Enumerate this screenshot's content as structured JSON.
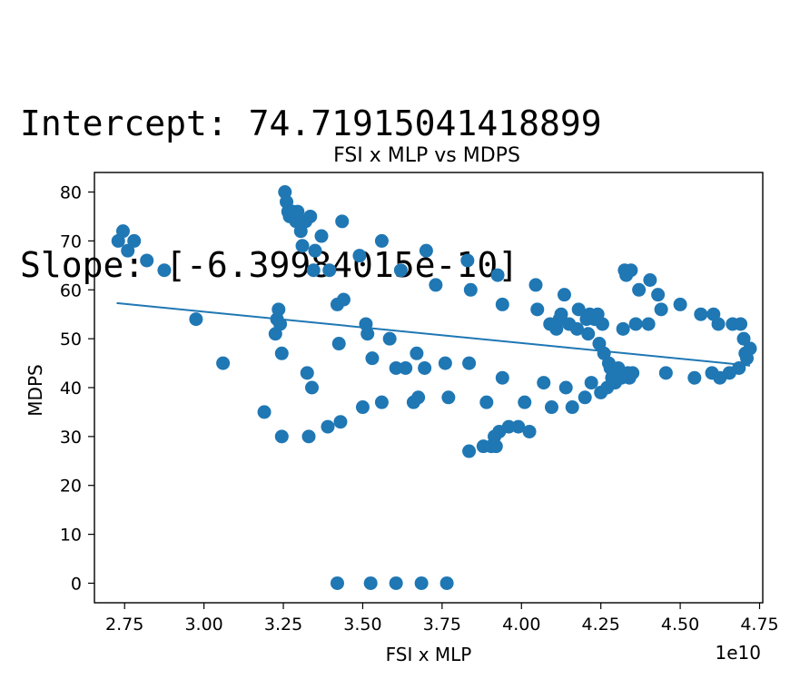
{
  "output": {
    "intercept_line": "Intercept: 74.71915041418899",
    "slope_line": "Slope: [-6.39984015e-10]"
  },
  "chart_data": {
    "type": "scatter",
    "title": "FSI x MLP vs MDPS",
    "xlabel": "FSI x MLP",
    "ylabel": "MDPS",
    "x_offset_label": "1e10",
    "x_units": "1e10",
    "xlim": [
      2.655,
      4.76
    ],
    "ylim": [
      -4,
      84
    ],
    "x_ticks": [
      2.75,
      3.0,
      3.25,
      3.5,
      3.75,
      4.0,
      4.25,
      4.5,
      4.75
    ],
    "x_tick_labels": [
      "2.75",
      "3.00",
      "3.25",
      "3.50",
      "3.75",
      "4.00",
      "4.25",
      "4.50",
      "4.75"
    ],
    "y_ticks": [
      0,
      10,
      20,
      30,
      40,
      50,
      60,
      70,
      80
    ],
    "y_tick_labels": [
      "0",
      "10",
      "20",
      "30",
      "40",
      "50",
      "60",
      "70",
      "80"
    ],
    "grid": false,
    "point_color": "#1f77b4",
    "line_color": "#1f77b4",
    "series": [
      {
        "type": "scatter",
        "points": [
          [
            2.73,
            70
          ],
          [
            2.745,
            72
          ],
          [
            2.76,
            68
          ],
          [
            2.78,
            70
          ],
          [
            2.82,
            66
          ],
          [
            2.875,
            64
          ],
          [
            2.975,
            54
          ],
          [
            3.06,
            45
          ],
          [
            3.19,
            35
          ],
          [
            3.225,
            51
          ],
          [
            3.23,
            54
          ],
          [
            3.235,
            56
          ],
          [
            3.24,
            53
          ],
          [
            3.245,
            47
          ],
          [
            3.245,
            30
          ],
          [
            3.255,
            80
          ],
          [
            3.26,
            78
          ],
          [
            3.265,
            76
          ],
          [
            3.27,
            75
          ],
          [
            3.28,
            76
          ],
          [
            3.29,
            74
          ],
          [
            3.295,
            76
          ],
          [
            3.305,
            72
          ],
          [
            3.31,
            69
          ],
          [
            3.32,
            74
          ],
          [
            3.325,
            43
          ],
          [
            3.33,
            30
          ],
          [
            3.335,
            75
          ],
          [
            3.34,
            40
          ],
          [
            3.345,
            64
          ],
          [
            3.35,
            68
          ],
          [
            3.37,
            71
          ],
          [
            3.39,
            32
          ],
          [
            3.395,
            64
          ],
          [
            3.42,
            57
          ],
          [
            3.425,
            49
          ],
          [
            3.43,
            33
          ],
          [
            3.435,
            74
          ],
          [
            3.44,
            58
          ],
          [
            3.49,
            67
          ],
          [
            3.5,
            36
          ],
          [
            3.51,
            53
          ],
          [
            3.515,
            51
          ],
          [
            3.53,
            46
          ],
          [
            3.56,
            70
          ],
          [
            3.56,
            37
          ],
          [
            3.585,
            50
          ],
          [
            3.605,
            44
          ],
          [
            3.62,
            64
          ],
          [
            3.635,
            44
          ],
          [
            3.66,
            37
          ],
          [
            3.67,
            47
          ],
          [
            3.675,
            38
          ],
          [
            3.695,
            44
          ],
          [
            3.7,
            68
          ],
          [
            3.73,
            61
          ],
          [
            3.76,
            45
          ],
          [
            3.77,
            38
          ],
          [
            3.84,
            60
          ],
          [
            3.83,
            66
          ],
          [
            3.835,
            45
          ],
          [
            3.835,
            27
          ],
          [
            3.88,
            28
          ],
          [
            3.89,
            37
          ],
          [
            3.905,
            28
          ],
          [
            3.915,
            30
          ],
          [
            3.92,
            28
          ],
          [
            3.925,
            63
          ],
          [
            3.93,
            31
          ],
          [
            3.94,
            57
          ],
          [
            3.94,
            42
          ],
          [
            3.96,
            32
          ],
          [
            3.99,
            32
          ],
          [
            4.01,
            37
          ],
          [
            4.025,
            31
          ],
          [
            4.045,
            61
          ],
          [
            4.05,
            56
          ],
          [
            4.07,
            41
          ],
          [
            4.09,
            53
          ],
          [
            4.095,
            36
          ],
          [
            4.11,
            52
          ],
          [
            4.12,
            54
          ],
          [
            4.125,
            55
          ],
          [
            4.135,
            59
          ],
          [
            4.14,
            40
          ],
          [
            4.15,
            53
          ],
          [
            4.16,
            36
          ],
          [
            4.175,
            52
          ],
          [
            4.18,
            56
          ],
          [
            4.2,
            38
          ],
          [
            4.205,
            54
          ],
          [
            4.21,
            51
          ],
          [
            4.215,
            55
          ],
          [
            4.22,
            41
          ],
          [
            4.23,
            54
          ],
          [
            4.24,
            55
          ],
          [
            4.245,
            49
          ],
          [
            4.25,
            39
          ],
          [
            4.255,
            53
          ],
          [
            4.26,
            47
          ],
          [
            4.27,
            40
          ],
          [
            4.275,
            45
          ],
          [
            4.28,
            44
          ],
          [
            4.285,
            42
          ],
          [
            4.29,
            43
          ],
          [
            4.295,
            41
          ],
          [
            4.3,
            42
          ],
          [
            4.305,
            44
          ],
          [
            4.31,
            43
          ],
          [
            4.315,
            42
          ],
          [
            4.32,
            52
          ],
          [
            4.325,
            64
          ],
          [
            4.33,
            63
          ],
          [
            4.335,
            43
          ],
          [
            4.34,
            42
          ],
          [
            4.345,
            64
          ],
          [
            4.35,
            43
          ],
          [
            4.36,
            53
          ],
          [
            4.37,
            60
          ],
          [
            4.4,
            53
          ],
          [
            4.405,
            62
          ],
          [
            4.43,
            59
          ],
          [
            4.44,
            56
          ],
          [
            4.455,
            43
          ],
          [
            4.5,
            57
          ],
          [
            4.545,
            42
          ],
          [
            4.565,
            55
          ],
          [
            4.6,
            43
          ],
          [
            4.605,
            55
          ],
          [
            4.62,
            53
          ],
          [
            4.625,
            42
          ],
          [
            4.655,
            43
          ],
          [
            4.665,
            53
          ],
          [
            4.685,
            44
          ],
          [
            4.69,
            53
          ],
          [
            4.7,
            50
          ],
          [
            4.705,
            47
          ],
          [
            4.71,
            46
          ],
          [
            4.72,
            48
          ],
          [
            3.42,
            0
          ],
          [
            3.525,
            0
          ],
          [
            3.605,
            0
          ],
          [
            3.685,
            0
          ],
          [
            3.765,
            0
          ]
        ]
      },
      {
        "type": "line",
        "x": [
          2.725,
          4.72
        ],
        "y": [
          57.28,
          44.51
        ]
      }
    ]
  }
}
